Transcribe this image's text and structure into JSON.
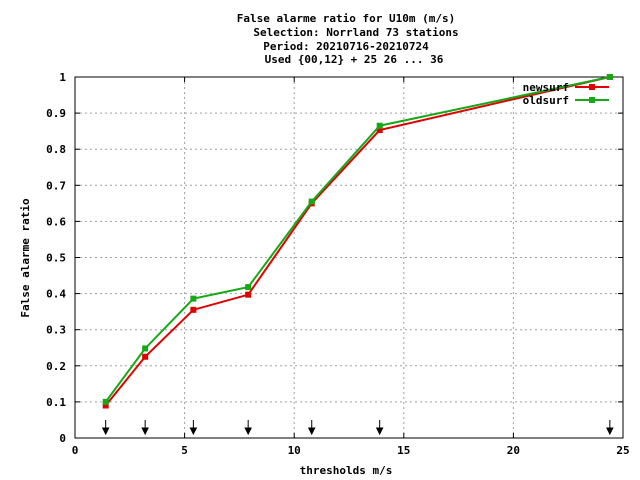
{
  "chart_data": {
    "type": "line",
    "title_lines": [
      "False alarme ratio  for U10m (m/s)",
      "Selection: Norrland     73 stations",
      "Period: 20210716-20210724",
      "Used {00,12} + 25 26 ... 36"
    ],
    "xlabel": "thresholds m/s",
    "ylabel": "False alarme ratio",
    "xlim": [
      0,
      25
    ],
    "ylim": [
      0,
      1
    ],
    "x_ticks": [
      0,
      5,
      10,
      15,
      20,
      25
    ],
    "y_ticks": [
      0,
      0.1,
      0.2,
      0.3,
      0.4,
      0.5,
      0.6,
      0.7,
      0.8,
      0.9,
      1
    ],
    "grid": true,
    "legend_position": "top-right",
    "threshold_markers": [
      1.4,
      3.2,
      5.4,
      7.9,
      10.8,
      13.9,
      24.4
    ],
    "series": [
      {
        "name": "newsurf",
        "color": "#e00000",
        "x": [
          1.4,
          3.2,
          5.4,
          7.9,
          10.8,
          13.9,
          24.4
        ],
        "y": [
          0.09,
          0.225,
          0.355,
          0.397,
          0.65,
          0.853,
          1.0
        ]
      },
      {
        "name": "oldsurf",
        "color": "#16a816",
        "x": [
          1.4,
          3.2,
          5.4,
          7.9,
          10.8,
          13.9,
          24.4
        ],
        "y": [
          0.1,
          0.248,
          0.386,
          0.418,
          0.655,
          0.865,
          1.0
        ]
      }
    ]
  }
}
